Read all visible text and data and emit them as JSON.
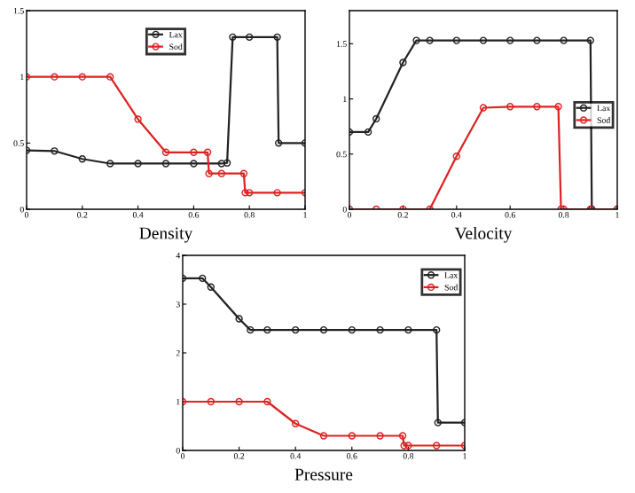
{
  "chart_data": [
    {
      "type": "line",
      "xlabel": "Density",
      "xlim": [
        0,
        1
      ],
      "ylim": [
        0,
        1.5
      ],
      "xticks": [
        0,
        0.2,
        0.4,
        0.6,
        0.8,
        1
      ],
      "yticks": [
        0,
        0.5,
        1,
        1.5
      ],
      "legend": "top",
      "marker": "circle",
      "grid": false,
      "series": [
        {
          "name": "Lax",
          "color": "#222222",
          "x": [
            0,
            0.1,
            0.2,
            0.3,
            0.4,
            0.5,
            0.6,
            0.7,
            0.72,
            0.74,
            0.8,
            0.9,
            0.905,
            1
          ],
          "values": [
            0.445,
            0.44,
            0.38,
            0.345,
            0.345,
            0.345,
            0.345,
            0.345,
            0.35,
            1.3,
            1.3,
            1.3,
            0.5,
            0.5
          ]
        },
        {
          "name": "Sod",
          "color": "#dd2222",
          "x": [
            0,
            0.1,
            0.2,
            0.3,
            0.4,
            0.5,
            0.6,
            0.65,
            0.655,
            0.7,
            0.78,
            0.785,
            0.8,
            0.9,
            1
          ],
          "values": [
            1,
            1,
            1,
            1,
            0.68,
            0.43,
            0.43,
            0.43,
            0.27,
            0.27,
            0.27,
            0.125,
            0.125,
            0.125,
            0.125
          ]
        }
      ]
    },
    {
      "type": "line",
      "xlabel": "Velocity",
      "xlim": [
        0,
        1
      ],
      "ylim": [
        0,
        1.8
      ],
      "xticks": [
        0,
        0.2,
        0.4,
        0.6,
        0.8,
        1
      ],
      "yticks": [
        0,
        0.5,
        1,
        1.5
      ],
      "legend": "right",
      "marker": "circle",
      "grid": false,
      "series": [
        {
          "name": "Lax",
          "color": "#222222",
          "x": [
            0,
            0.07,
            0.1,
            0.2,
            0.25,
            0.3,
            0.4,
            0.5,
            0.6,
            0.7,
            0.8,
            0.9,
            0.905,
            1
          ],
          "values": [
            0.7,
            0.7,
            0.82,
            1.33,
            1.53,
            1.53,
            1.53,
            1.53,
            1.53,
            1.53,
            1.53,
            1.53,
            0,
            0
          ]
        },
        {
          "name": "Sod",
          "color": "#dd2222",
          "x": [
            0,
            0.1,
            0.2,
            0.3,
            0.4,
            0.5,
            0.6,
            0.7,
            0.78,
            0.79,
            0.8,
            0.9,
            1
          ],
          "values": [
            0,
            0,
            0,
            0,
            0.48,
            0.92,
            0.93,
            0.93,
            0.93,
            0,
            0,
            0,
            0
          ]
        }
      ]
    },
    {
      "type": "line",
      "xlabel": "Pressure",
      "xlim": [
        0,
        1
      ],
      "ylim": [
        0,
        4
      ],
      "xticks": [
        0,
        0.2,
        0.4,
        0.6,
        0.8,
        1
      ],
      "yticks": [
        0,
        1,
        2,
        3,
        4
      ],
      "legend": "top right",
      "marker": "circle",
      "grid": false,
      "series": [
        {
          "name": "Lax",
          "color": "#222222",
          "x": [
            0,
            0.07,
            0.1,
            0.2,
            0.24,
            0.3,
            0.4,
            0.5,
            0.6,
            0.7,
            0.8,
            0.9,
            0.905,
            1
          ],
          "values": [
            3.53,
            3.53,
            3.35,
            2.7,
            2.47,
            2.47,
            2.47,
            2.47,
            2.47,
            2.47,
            2.47,
            2.47,
            0.57,
            0.57
          ]
        },
        {
          "name": "Sod",
          "color": "#dd2222",
          "x": [
            0,
            0.1,
            0.2,
            0.3,
            0.4,
            0.5,
            0.6,
            0.7,
            0.78,
            0.785,
            0.8,
            0.9,
            1
          ],
          "values": [
            1,
            1,
            1,
            1,
            0.55,
            0.3,
            0.3,
            0.3,
            0.3,
            0.1,
            0.1,
            0.1,
            0.1
          ]
        }
      ]
    }
  ]
}
